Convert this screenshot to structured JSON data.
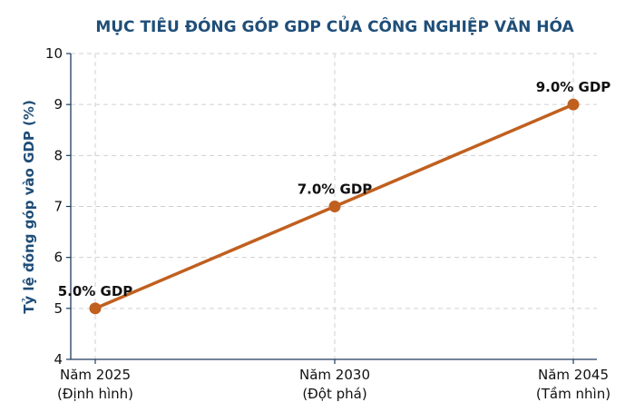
{
  "chart_data": {
    "type": "line",
    "title": "MỤC TIÊU ĐÓNG GÓP GDP CỦA CÔNG NGHIỆP VĂN HÓA",
    "xlabel": "",
    "ylabel": "Tỷ lệ đóng góp vào GDP (%)",
    "ylim": [
      4,
      10
    ],
    "yticks": [
      4,
      5,
      6,
      7,
      8,
      9,
      10
    ],
    "grid": true,
    "categories": [
      {
        "line1": "Năm 2025",
        "line2": "(Định hình)"
      },
      {
        "line1": "Năm 2030",
        "line2": "(Đột phá)"
      },
      {
        "line1": "Năm 2045",
        "line2": "(Tầm nhìn)"
      }
    ],
    "series": [
      {
        "color": "#c0601f",
        "values": [
          5.0,
          7.0,
          9.0
        ],
        "labels": [
          "5.0% GDP",
          "7.0% GDP",
          "9.0% GDP"
        ]
      }
    ]
  }
}
